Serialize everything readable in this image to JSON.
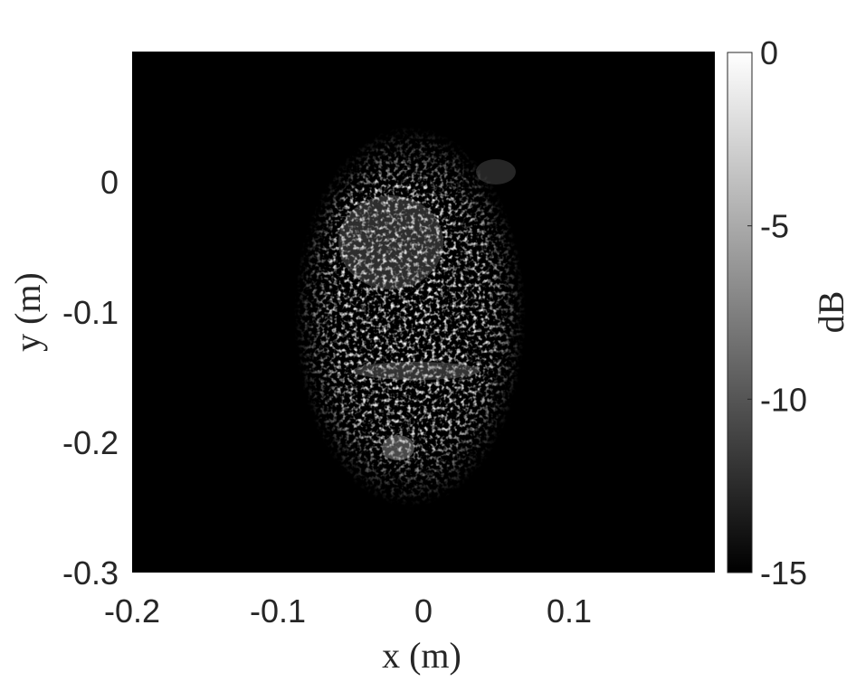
{
  "chart_data": {
    "type": "heatmap",
    "title": "",
    "xlabel": "x (m)",
    "ylabel": "y (m)",
    "xlim": [
      -0.2,
      0.2
    ],
    "ylim": [
      -0.3,
      0.1
    ],
    "x_ticks": [
      -0.2,
      -0.1,
      0,
      0.1
    ],
    "x_tick_labels": [
      "-0.2",
      "-0.1",
      "0",
      "0.1"
    ],
    "y_ticks": [
      -0.3,
      -0.2,
      -0.1,
      0
    ],
    "y_tick_labels": [
      "-0.3",
      "-0.2",
      "-0.1",
      "0"
    ],
    "colormap": "gray",
    "colorbar": {
      "label": "dB",
      "range": [
        -15,
        0
      ],
      "ticks": [
        0,
        -5,
        -10,
        -15
      ],
      "tick_labels": [
        "0",
        "-5",
        "-10",
        "-15"
      ]
    },
    "background_level_db": -15
  },
  "colors": {
    "background": "#000000",
    "text": "#262626"
  }
}
